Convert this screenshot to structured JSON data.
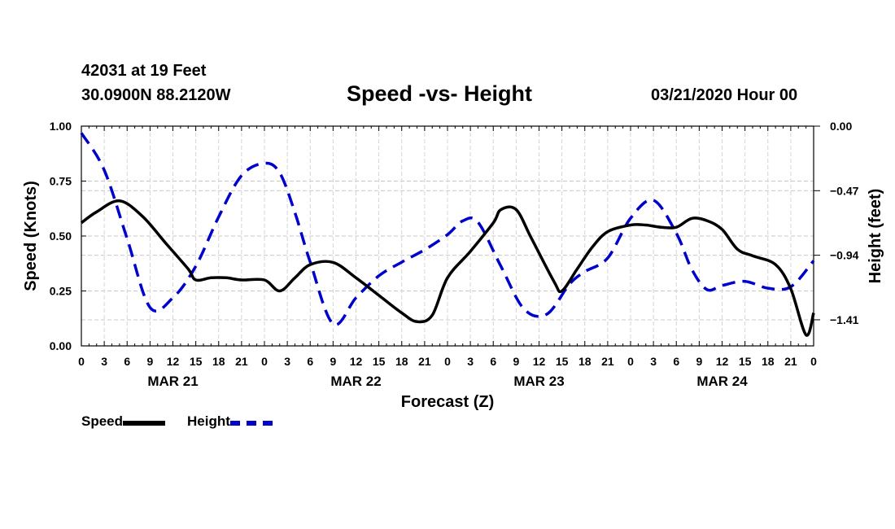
{
  "header": {
    "station": "42031 at 19 Feet",
    "coords": "30.0900N 88.2120W",
    "title": "Speed -vs- Height",
    "date": "03/21/2020 Hour 00"
  },
  "legend": {
    "speed_label": "Speed",
    "height_label": "Height"
  },
  "chart_data": {
    "type": "line",
    "title": "Speed -vs- Height",
    "xlabel": "Forecast (Z)",
    "ylabel": "Speed (Knots)",
    "y2label": "Height (feet)",
    "xlim": [
      0,
      96
    ],
    "ylim": [
      0,
      1
    ],
    "y2lim": [
      -1.6,
      0
    ],
    "grid": true,
    "x_tick_labels": [
      "0",
      "3",
      "6",
      "9",
      "12",
      "15",
      "18",
      "21",
      "0",
      "3",
      "6",
      "9",
      "12",
      "15",
      "18",
      "21",
      "0",
      "3",
      "6",
      "9",
      "12",
      "15",
      "18",
      "21",
      "0",
      "3",
      "6",
      "9",
      "12",
      "15",
      "18",
      "21",
      "0"
    ],
    "y_ticks": [
      {
        "value": 0,
        "label": "0.00"
      },
      {
        "value": 0.25,
        "label": "0.25"
      },
      {
        "value": 0.5,
        "label": "0.50"
      },
      {
        "value": 0.75,
        "label": "0.75"
      },
      {
        "value": 1.0,
        "label": "1.00"
      }
    ],
    "y2_ticks": [
      {
        "value": 0.0,
        "label": "0.00"
      },
      {
        "value": -0.47,
        "label": "-0.47"
      },
      {
        "value": -0.94,
        "label": "-0.94"
      },
      {
        "value": -1.41,
        "label": "-1.41"
      }
    ],
    "date_labels": [
      {
        "x": 12,
        "label": "MAR 21"
      },
      {
        "x": 36,
        "label": "MAR 22"
      },
      {
        "x": 60,
        "label": "MAR 23"
      },
      {
        "x": 84,
        "label": "MAR 24"
      }
    ],
    "series": [
      {
        "name": "Speed",
        "axis": "left",
        "color": "#000000",
        "dash": false,
        "x": [
          0,
          2,
          5,
          8,
          11,
          14,
          15,
          17,
          19,
          21,
          24,
          26,
          28,
          30,
          33,
          36,
          39,
          42,
          44,
          46,
          48,
          51,
          54,
          55,
          57,
          59,
          62,
          63,
          65,
          67,
          69,
          72,
          74,
          76,
          78,
          80,
          82,
          84,
          86,
          88,
          91,
          93,
          95,
          96
        ],
        "y": [
          0.56,
          0.61,
          0.66,
          0.59,
          0.47,
          0.35,
          0.3,
          0.31,
          0.31,
          0.3,
          0.3,
          0.25,
          0.31,
          0.37,
          0.38,
          0.31,
          0.23,
          0.15,
          0.11,
          0.14,
          0.31,
          0.43,
          0.56,
          0.62,
          0.62,
          0.49,
          0.29,
          0.25,
          0.35,
          0.45,
          0.52,
          0.55,
          0.55,
          0.54,
          0.54,
          0.58,
          0.57,
          0.53,
          0.44,
          0.41,
          0.37,
          0.26,
          0.05,
          0.15
        ]
      },
      {
        "name": "Height",
        "axis": "right",
        "color": "#0000cc",
        "dash": true,
        "x": [
          0,
          3,
          6,
          9,
          12,
          15,
          18,
          21,
          24,
          26,
          28,
          30,
          33,
          36,
          39,
          42,
          45,
          48,
          50,
          52,
          55,
          58,
          61,
          64,
          66,
          69,
          72,
          75,
          78,
          80,
          82,
          84,
          87,
          90,
          93,
          96
        ],
        "y": [
          -0.05,
          -0.32,
          -0.82,
          -1.32,
          -1.25,
          -1.02,
          -0.66,
          -0.36,
          -0.27,
          -0.34,
          -0.63,
          -0.99,
          -1.44,
          -1.25,
          -1.09,
          -0.99,
          -0.9,
          -0.79,
          -0.69,
          -0.7,
          -1.02,
          -1.33,
          -1.37,
          -1.15,
          -1.06,
          -0.96,
          -0.67,
          -0.54,
          -0.78,
          -1.04,
          -1.19,
          -1.16,
          -1.13,
          -1.18,
          -1.17,
          -0.98
        ]
      }
    ]
  }
}
